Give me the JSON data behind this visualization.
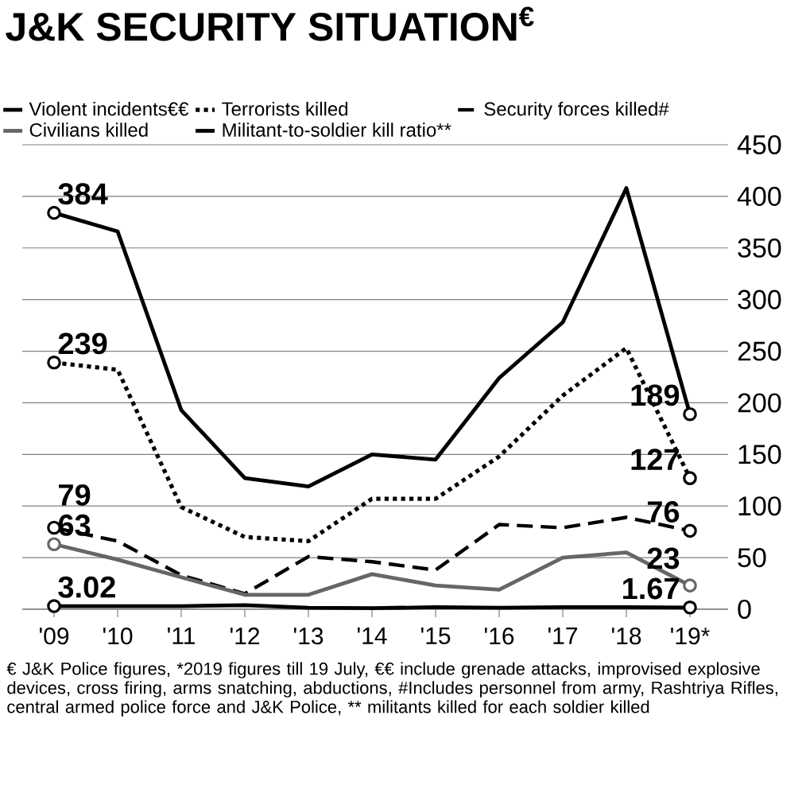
{
  "chart_data": {
    "type": "line",
    "title": "J&K SECURITY SITUATION$^{€}$",
    "categories": [
      "'09",
      "'10",
      "'11",
      "'12",
      "'13",
      "'14",
      "'15",
      "'16",
      "'17",
      "'18",
      "'19*"
    ],
    "series": [
      {
        "name": "Violent incidents€€",
        "color": "#000000",
        "line_style": "solid",
        "values": [
          384,
          366,
          193,
          127,
          119,
          150,
          145,
          224,
          278,
          408,
          189
        ]
      },
      {
        "name": "Terrorists killed",
        "color": "#000000",
        "line_style": "dotted",
        "values": [
          239,
          232,
          99,
          70,
          66,
          107,
          107,
          148,
          207,
          253,
          127
        ]
      },
      {
        "name": "Security forces killed#",
        "color": "#000000",
        "line_style": "dashed",
        "values": [
          79,
          66,
          33,
          15,
          51,
          46,
          38,
          82,
          79,
          89,
          76
        ]
      },
      {
        "name": "Civilians killed",
        "color": "#666666",
        "line_style": "solid",
        "values": [
          63,
          48,
          31,
          14,
          14,
          34,
          23,
          19,
          50,
          55,
          23
        ]
      },
      {
        "name": "Militant-to-soldier kill ratio**",
        "color": "#000000",
        "line_style": "solid",
        "values": [
          3.02,
          3,
          3,
          4,
          1.5,
          1,
          2,
          1.5,
          2,
          2,
          1.67
        ]
      }
    ],
    "ylim": [
      0,
      450
    ],
    "yticks": [
      0,
      50,
      100,
      150,
      200,
      250,
      300,
      350,
      400,
      450
    ],
    "grid": "y",
    "legend": "top",
    "annotations": [
      {
        "text": "384",
        "x": "'09",
        "y": 384
      },
      {
        "text": "239",
        "x": "'09",
        "y": 239
      },
      {
        "text": "79",
        "x": "'09",
        "y": 79
      },
      {
        "text": "63",
        "x": "'09",
        "y": 63
      },
      {
        "text": "3.02",
        "x": "'09",
        "y": 3.02
      },
      {
        "text": "189",
        "x": "'19*",
        "y": 189
      },
      {
        "text": "127",
        "x": "'19*",
        "y": 127
      },
      {
        "text": "76",
        "x": "'19*",
        "y": 76
      },
      {
        "text": "23",
        "x": "'19*",
        "y": 23
      },
      {
        "text": "1.67",
        "x": "'19*",
        "y": 1.67
      },
      "€ J&K Police figures, *2019 figures till 19 July, €€  include grenade attacks, improvised explosive devices, cross firing, arms snatching, abductions, #Includes personnel from army, Rashtriya Rifles, central armed police force  and J&K Police, ** militants killed for each soldier killed"
    ]
  }
}
